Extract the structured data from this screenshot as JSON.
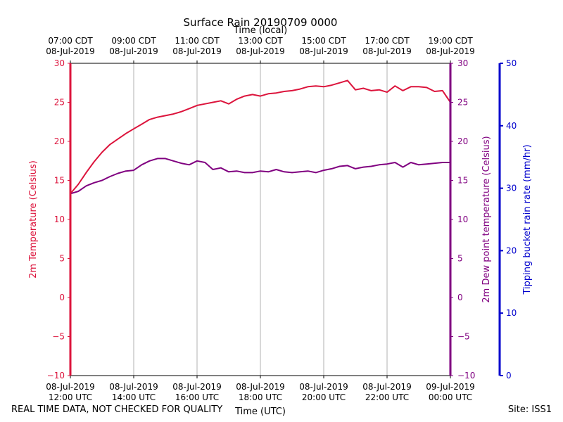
{
  "footer": {
    "disclaimer": "REAL TIME DATA, NOT CHECKED FOR QUALITY",
    "site": "Site: ISS1"
  },
  "chart_data": {
    "type": "line",
    "title": "Surface Rain 20190709 0000",
    "xlabel": "Time (UTC)",
    "x2label": "Time (local)",
    "ylabel": "2m Temperature (Celsius)",
    "y2label": "2m Dew point temperature (Celsius)",
    "y3label": "Tipping bucket rain rate (mm/hr)",
    "xlim_hours": [
      12,
      24
    ],
    "ylim": [
      -10,
      30
    ],
    "y2lim": [
      -10,
      30
    ],
    "y3lim": [
      0,
      50
    ],
    "yticks": [
      -10,
      -5,
      0,
      5,
      10,
      15,
      20,
      25,
      30
    ],
    "y3ticks": [
      0,
      10,
      20,
      30,
      40,
      50
    ],
    "ytick_labels": [
      "−10",
      "−5",
      "0",
      "5",
      "10",
      "15",
      "20",
      "25",
      "30"
    ],
    "y3tick_labels": [
      "0",
      "10",
      "20",
      "30",
      "40",
      "50"
    ],
    "grid": "vertical",
    "colors": {
      "temperature": "#dc143c",
      "dewpoint": "#800080",
      "rain": "#0000cd",
      "grid": "#b0b0b0"
    },
    "x_ticks": [
      {
        "hour": 12,
        "utc": [
          "08-Jul-2019",
          "12:00 UTC"
        ],
        "local": [
          "07:00 CDT",
          "08-Jul-2019"
        ]
      },
      {
        "hour": 14,
        "utc": [
          "08-Jul-2019",
          "14:00 UTC"
        ],
        "local": [
          "09:00 CDT",
          "08-Jul-2019"
        ]
      },
      {
        "hour": 16,
        "utc": [
          "08-Jul-2019",
          "16:00 UTC"
        ],
        "local": [
          "11:00 CDT",
          "08-Jul-2019"
        ]
      },
      {
        "hour": 18,
        "utc": [
          "08-Jul-2019",
          "18:00 UTC"
        ],
        "local": [
          "13:00 CDT",
          "08-Jul-2019"
        ]
      },
      {
        "hour": 20,
        "utc": [
          "08-Jul-2019",
          "20:00 UTC"
        ],
        "local": [
          "15:00 CDT",
          "08-Jul-2019"
        ]
      },
      {
        "hour": 22,
        "utc": [
          "08-Jul-2019",
          "22:00 UTC"
        ],
        "local": [
          "17:00 CDT",
          "08-Jul-2019"
        ]
      },
      {
        "hour": 24,
        "utc": [
          "09-Jul-2019",
          "00:00 UTC"
        ],
        "local": [
          "19:00 CDT",
          "08-Jul-2019"
        ]
      }
    ],
    "series": [
      {
        "name": "2m Temperature",
        "axis": "left",
        "x": [
          12.0,
          12.25,
          12.5,
          12.75,
          13.0,
          13.25,
          13.5,
          13.75,
          14.0,
          14.25,
          14.5,
          14.75,
          15.0,
          15.25,
          15.5,
          15.75,
          16.0,
          16.25,
          16.5,
          16.75,
          17.0,
          17.25,
          17.5,
          17.75,
          18.0,
          18.25,
          18.5,
          18.75,
          19.0,
          19.25,
          19.5,
          19.75,
          20.0,
          20.25,
          20.5,
          20.75,
          21.0,
          21.25,
          21.5,
          21.75,
          22.0,
          22.25,
          22.5,
          22.75,
          23.0,
          23.25,
          23.5,
          23.75,
          24.0
        ],
        "y": [
          13.3,
          14.5,
          16.0,
          17.4,
          18.6,
          19.6,
          20.3,
          21.0,
          21.6,
          22.2,
          22.8,
          23.1,
          23.3,
          23.5,
          23.8,
          24.2,
          24.6,
          24.8,
          25.0,
          25.2,
          24.8,
          25.4,
          25.8,
          26.0,
          25.8,
          26.1,
          26.2,
          26.4,
          26.5,
          26.7,
          27.0,
          27.1,
          27.0,
          27.2,
          27.5,
          27.8,
          26.6,
          26.8,
          26.5,
          26.6,
          26.3,
          27.1,
          26.5,
          27.0,
          27.0,
          26.9,
          26.4,
          26.5,
          25.0
        ]
      },
      {
        "name": "2m Dew point temperature",
        "axis": "right",
        "x": [
          12.0,
          12.25,
          12.5,
          12.75,
          13.0,
          13.25,
          13.5,
          13.75,
          14.0,
          14.25,
          14.5,
          14.75,
          15.0,
          15.25,
          15.5,
          15.75,
          16.0,
          16.25,
          16.5,
          16.75,
          17.0,
          17.25,
          17.5,
          17.75,
          18.0,
          18.25,
          18.5,
          18.75,
          19.0,
          19.25,
          19.5,
          19.75,
          20.0,
          20.25,
          20.5,
          20.75,
          21.0,
          21.25,
          21.5,
          21.75,
          22.0,
          22.25,
          22.5,
          22.75,
          23.0,
          23.25,
          23.5,
          23.75,
          24.0
        ],
        "y": [
          13.3,
          13.6,
          14.3,
          14.7,
          15.0,
          15.5,
          15.9,
          16.2,
          16.3,
          17.0,
          17.5,
          17.8,
          17.8,
          17.5,
          17.2,
          17.0,
          17.5,
          17.3,
          16.4,
          16.6,
          16.1,
          16.2,
          16.0,
          16.0,
          16.2,
          16.1,
          16.4,
          16.1,
          16.0,
          16.1,
          16.2,
          16.0,
          16.3,
          16.5,
          16.8,
          16.9,
          16.5,
          16.7,
          16.8,
          17.0,
          17.1,
          17.3,
          16.7,
          17.3,
          17.0,
          17.1,
          17.2,
          17.3,
          17.3
        ]
      },
      {
        "name": "Tipping bucket rain rate",
        "axis": "right3",
        "x": [
          12.0,
          24.0
        ],
        "y": [
          0,
          0
        ]
      }
    ]
  }
}
